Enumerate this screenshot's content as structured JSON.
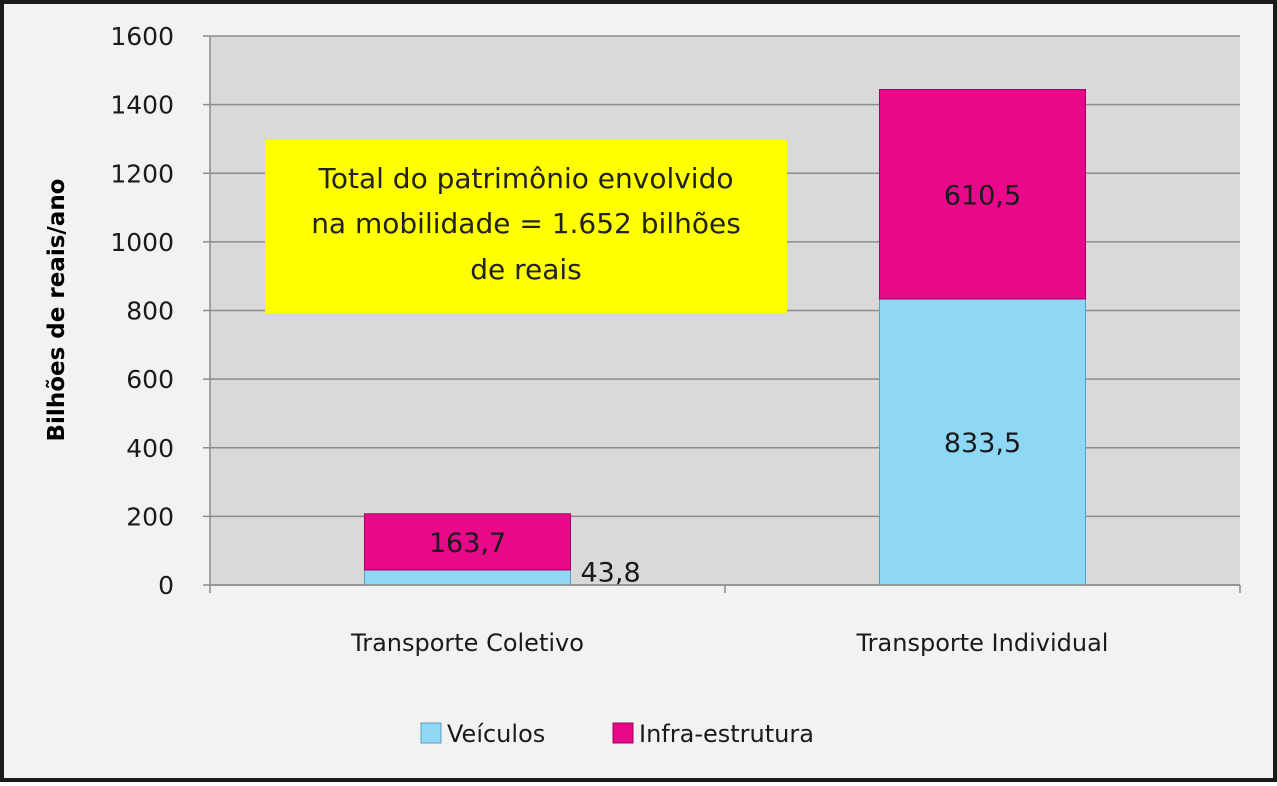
{
  "chart_data": {
    "type": "bar",
    "stacked": true,
    "categories": [
      "Transporte Coletivo",
      "Transporte Individual"
    ],
    "series": [
      {
        "name": "Veículos",
        "values": [
          43.8,
          833.5
        ],
        "labels": [
          "43,8",
          "833,5"
        ],
        "color": "#8fd8f5"
      },
      {
        "name": "Infra-estrutura",
        "values": [
          163.7,
          610.5
        ],
        "labels": [
          "163,7",
          "610,5"
        ],
        "color": "#e8088a"
      }
    ],
    "ylabel": "Bilhões de reais/ano",
    "xlabel": "",
    "ylim": [
      0,
      1600
    ],
    "yticks": [
      0,
      200,
      400,
      600,
      800,
      1000,
      1200,
      1400,
      1600
    ],
    "grid": true,
    "legend_position": "bottom",
    "plot_background": "#d9d9d9",
    "annotation": {
      "lines": [
        "Total do patrimônio envolvido",
        "na mobilidade  = 1.652 bilhões",
        "de reais"
      ],
      "background": "#ffff00"
    }
  }
}
